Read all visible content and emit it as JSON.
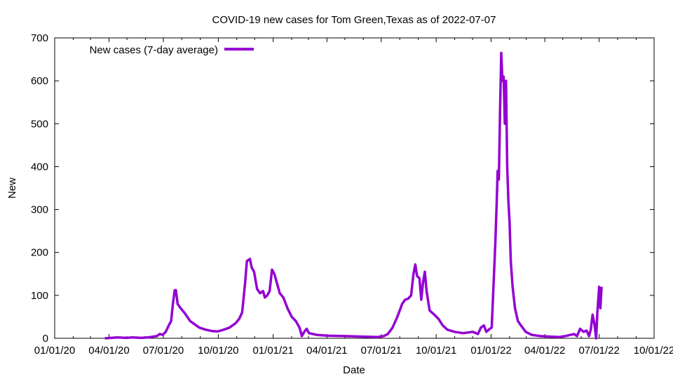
{
  "chart_data": {
    "type": "line",
    "title": "COVID-19 new cases for Tom Green,Texas as of 2022-07-07",
    "xlabel": "Date",
    "ylabel": "New",
    "x_range": [
      "2020-01-01",
      "2022-10-01"
    ],
    "x_ticks": [
      "01/01/20",
      "04/01/20",
      "07/01/20",
      "10/01/20",
      "01/01/21",
      "04/01/21",
      "07/01/21",
      "10/01/21",
      "01/01/22",
      "04/01/22",
      "07/01/22",
      "10/01/22"
    ],
    "ylim": [
      0,
      700
    ],
    "y_ticks": [
      "0",
      "100",
      "200",
      "300",
      "400",
      "500",
      "600",
      "700"
    ],
    "grid": false,
    "legend": "top-left",
    "series": [
      {
        "name": "New cases (7-day average)",
        "color": "#9400d3",
        "points": [
          [
            "2020-03-25",
            0
          ],
          [
            "2020-04-05",
            1
          ],
          [
            "2020-04-15",
            2
          ],
          [
            "2020-04-30",
            1
          ],
          [
            "2020-05-10",
            2
          ],
          [
            "2020-05-25",
            1
          ],
          [
            "2020-06-05",
            2
          ],
          [
            "2020-06-20",
            5
          ],
          [
            "2020-06-25",
            10
          ],
          [
            "2020-06-30",
            8
          ],
          [
            "2020-07-05",
            15
          ],
          [
            "2020-07-10",
            30
          ],
          [
            "2020-07-14",
            40
          ],
          [
            "2020-07-17",
            80
          ],
          [
            "2020-07-20",
            112
          ],
          [
            "2020-07-22",
            112
          ],
          [
            "2020-07-25",
            80
          ],
          [
            "2020-07-30",
            70
          ],
          [
            "2020-08-05",
            60
          ],
          [
            "2020-08-10",
            50
          ],
          [
            "2020-08-15",
            40
          ],
          [
            "2020-08-20",
            35
          ],
          [
            "2020-08-30",
            25
          ],
          [
            "2020-09-10",
            20
          ],
          [
            "2020-09-20",
            17
          ],
          [
            "2020-09-30",
            16
          ],
          [
            "2020-10-10",
            20
          ],
          [
            "2020-10-20",
            25
          ],
          [
            "2020-10-30",
            35
          ],
          [
            "2020-11-05",
            45
          ],
          [
            "2020-11-10",
            60
          ],
          [
            "2020-11-15",
            130
          ],
          [
            "2020-11-18",
            180
          ],
          [
            "2020-11-23",
            185
          ],
          [
            "2020-11-26",
            165
          ],
          [
            "2020-11-30",
            155
          ],
          [
            "2020-12-05",
            115
          ],
          [
            "2020-12-10",
            105
          ],
          [
            "2020-12-15",
            110
          ],
          [
            "2020-12-18",
            95
          ],
          [
            "2020-12-22",
            100
          ],
          [
            "2020-12-26",
            110
          ],
          [
            "2020-12-30",
            160
          ],
          [
            "2021-01-03",
            150
          ],
          [
            "2021-01-07",
            130
          ],
          [
            "2021-01-12",
            105
          ],
          [
            "2021-01-18",
            95
          ],
          [
            "2021-01-25",
            70
          ],
          [
            "2021-02-01",
            50
          ],
          [
            "2021-02-08",
            40
          ],
          [
            "2021-02-14",
            25
          ],
          [
            "2021-02-18",
            5
          ],
          [
            "2021-02-22",
            15
          ],
          [
            "2021-02-26",
            22
          ],
          [
            "2021-03-02",
            12
          ],
          [
            "2021-03-15",
            8
          ],
          [
            "2021-04-01",
            6
          ],
          [
            "2021-05-01",
            5
          ],
          [
            "2021-06-01",
            4
          ],
          [
            "2021-06-25",
            3
          ],
          [
            "2021-07-05",
            5
          ],
          [
            "2021-07-12",
            10
          ],
          [
            "2021-07-20",
            25
          ],
          [
            "2021-07-28",
            50
          ],
          [
            "2021-08-05",
            80
          ],
          [
            "2021-08-10",
            90
          ],
          [
            "2021-08-15",
            92
          ],
          [
            "2021-08-20",
            100
          ],
          [
            "2021-08-24",
            150
          ],
          [
            "2021-08-27",
            172
          ],
          [
            "2021-08-30",
            145
          ],
          [
            "2021-09-03",
            140
          ],
          [
            "2021-09-06",
            90
          ],
          [
            "2021-09-09",
            130
          ],
          [
            "2021-09-12",
            155
          ],
          [
            "2021-09-15",
            110
          ],
          [
            "2021-09-20",
            65
          ],
          [
            "2021-09-28",
            55
          ],
          [
            "2021-10-05",
            45
          ],
          [
            "2021-10-12",
            30
          ],
          [
            "2021-10-20",
            20
          ],
          [
            "2021-11-01",
            15
          ],
          [
            "2021-11-15",
            12
          ],
          [
            "2021-12-01",
            15
          ],
          [
            "2021-12-10",
            10
          ],
          [
            "2021-12-15",
            25
          ],
          [
            "2021-12-20",
            30
          ],
          [
            "2021-12-24",
            15
          ],
          [
            "2021-12-28",
            20
          ],
          [
            "2022-01-02",
            25
          ],
          [
            "2022-01-05",
            120
          ],
          [
            "2022-01-08",
            220
          ],
          [
            "2022-01-10",
            300
          ],
          [
            "2022-01-12",
            390
          ],
          [
            "2022-01-14",
            370
          ],
          [
            "2022-01-16",
            530
          ],
          [
            "2022-01-18",
            665
          ],
          [
            "2022-01-20",
            600
          ],
          [
            "2022-01-22",
            610
          ],
          [
            "2022-01-24",
            500
          ],
          [
            "2022-01-26",
            600
          ],
          [
            "2022-01-28",
            400
          ],
          [
            "2022-01-30",
            320
          ],
          [
            "2022-02-01",
            270
          ],
          [
            "2022-02-03",
            180
          ],
          [
            "2022-02-06",
            120
          ],
          [
            "2022-02-10",
            70
          ],
          [
            "2022-02-15",
            40
          ],
          [
            "2022-02-20",
            30
          ],
          [
            "2022-02-28",
            15
          ],
          [
            "2022-03-10",
            8
          ],
          [
            "2022-03-25",
            5
          ],
          [
            "2022-04-10",
            4
          ],
          [
            "2022-04-25",
            3
          ],
          [
            "2022-05-05",
            5
          ],
          [
            "2022-05-20",
            10
          ],
          [
            "2022-05-25",
            5
          ],
          [
            "2022-05-30",
            22
          ],
          [
            "2022-06-05",
            15
          ],
          [
            "2022-06-10",
            18
          ],
          [
            "2022-06-14",
            5
          ],
          [
            "2022-06-17",
            20
          ],
          [
            "2022-06-20",
            55
          ],
          [
            "2022-06-23",
            35
          ],
          [
            "2022-06-26",
            0
          ],
          [
            "2022-06-28",
            60
          ],
          [
            "2022-07-01",
            120
          ],
          [
            "2022-07-03",
            70
          ],
          [
            "2022-07-05",
            120
          ]
        ]
      }
    ]
  }
}
